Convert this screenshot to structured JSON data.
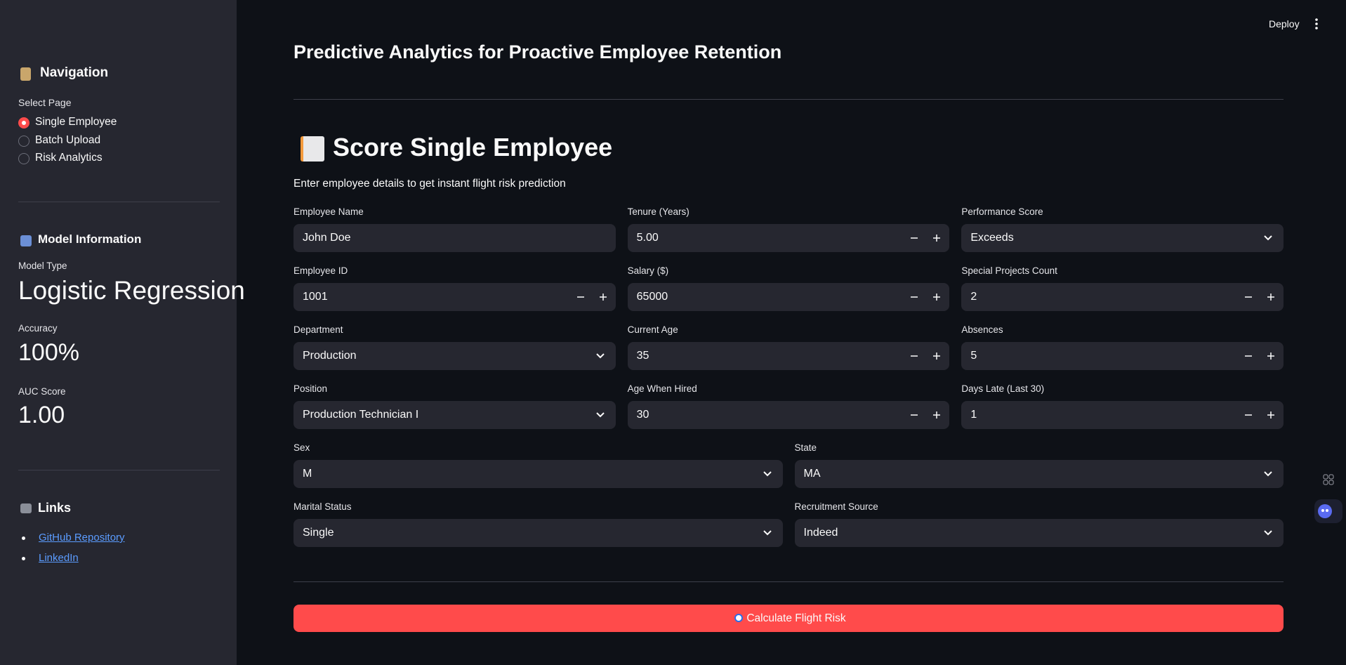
{
  "sidebar": {
    "navigation": {
      "title": "Navigation",
      "select_label": "Select Page",
      "options": [
        "Single Employee",
        "Batch Upload",
        "Risk Analytics"
      ],
      "selected": 0
    },
    "model_info": {
      "title": "Model Information",
      "metrics": [
        {
          "label": "Model Type",
          "value": "Logistic Regression"
        },
        {
          "label": "Accuracy",
          "value": "100%"
        },
        {
          "label": "AUC Score",
          "value": "1.00"
        }
      ]
    },
    "links": {
      "title": "Links",
      "items": [
        "GitHub Repository",
        "LinkedIn"
      ]
    }
  },
  "header": {
    "deploy": "Deploy"
  },
  "main": {
    "title": "Predictive Analytics for Proactive Employee Retention",
    "section_title": "Score Single Employee",
    "description": "Enter employee details to get instant flight risk prediction",
    "rows": [
      [
        {
          "label": "Employee Name",
          "value": "John Doe",
          "kind": "text"
        },
        {
          "label": "Tenure (Years)",
          "value": "5.00",
          "kind": "number"
        },
        {
          "label": "Performance Score",
          "value": "Exceeds",
          "kind": "select"
        }
      ],
      [
        {
          "label": "Employee ID",
          "value": "1001",
          "kind": "number"
        },
        {
          "label": "Salary ($)",
          "value": "65000",
          "kind": "number"
        },
        {
          "label": "Special Projects Count",
          "value": "2",
          "kind": "number"
        }
      ],
      [
        {
          "label": "Department",
          "value": "Production",
          "kind": "select"
        },
        {
          "label": "Current Age",
          "value": "35",
          "kind": "number"
        },
        {
          "label": "Absences",
          "value": "5",
          "kind": "number"
        }
      ],
      [
        {
          "label": "Position",
          "value": "Production Technician I",
          "kind": "select"
        },
        {
          "label": "Age When Hired",
          "value": "30",
          "kind": "number"
        },
        {
          "label": "Days Late (Last 30)",
          "value": "1",
          "kind": "number"
        }
      ],
      [
        {
          "label": "Sex",
          "value": "M",
          "kind": "select"
        },
        {
          "label": "State",
          "value": "MA",
          "kind": "select"
        }
      ],
      [
        {
          "label": "Marital Status",
          "value": "Single",
          "kind": "select"
        },
        {
          "label": "Recruitment Source",
          "value": "Indeed",
          "kind": "select"
        }
      ]
    ],
    "button": "Calculate Flight Risk"
  }
}
